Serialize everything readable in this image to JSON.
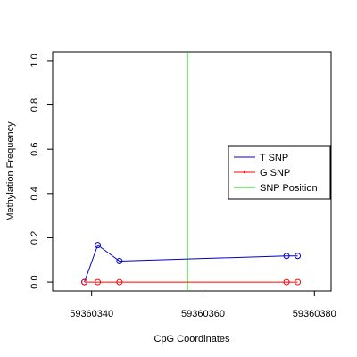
{
  "chart_data": {
    "type": "line",
    "xlabel": "CpG Coordinates",
    "ylabel": "Methylation Frequency",
    "xlim": [
      59360333,
      59360383
    ],
    "ylim": [
      -0.04,
      1.04
    ],
    "x_ticks": [
      59360340,
      59360360,
      59360380
    ],
    "y_ticks": [
      0.0,
      0.2,
      0.4,
      0.6,
      0.8,
      1.0
    ],
    "x_tick_labels": [
      "59360340",
      "59360360",
      "59360380"
    ],
    "y_tick_labels": [
      "0.0",
      "0.2",
      "0.4",
      "0.6",
      "0.8",
      "1.0"
    ],
    "series": [
      {
        "name": "T SNP",
        "color": "#0000cc",
        "x": [
          59360338.7,
          59360341.1,
          59360345.0,
          59360375.0,
          59360377.0
        ],
        "y": [
          0.0,
          0.167,
          0.095,
          0.118,
          0.118
        ]
      },
      {
        "name": "G SNP",
        "color": "#ff0000",
        "x": [
          59360338.7,
          59360341.1,
          59360345.0,
          59360375.0,
          59360377.0
        ],
        "y": [
          0.0,
          0.0,
          0.0,
          0.0,
          0.0
        ]
      }
    ],
    "snp_position": {
      "name": "SNP Position",
      "x": 59360357.2,
      "color": "#00cc00"
    },
    "legend": {
      "placement": "right",
      "entries": [
        {
          "label": "T SNP",
          "color": "#0000cc"
        },
        {
          "label": "G SNP",
          "color": "#ff0000"
        },
        {
          "label": "SNP Position",
          "color": "#00cc00"
        }
      ]
    }
  }
}
